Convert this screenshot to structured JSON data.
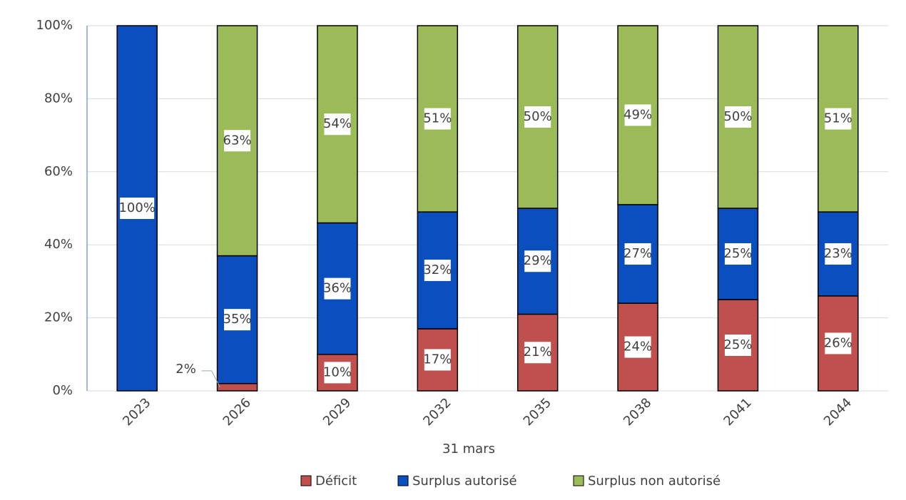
{
  "chart_data": {
    "type": "stacked_bar",
    "x_label": "31 mars",
    "categories": [
      "2023",
      "2026",
      "2029",
      "2032",
      "2035",
      "2038",
      "2041",
      "2044"
    ],
    "series": [
      {
        "name": "Déficit",
        "color": "#c0504d",
        "values": [
          0,
          2,
          10,
          17,
          21,
          24,
          25,
          26
        ],
        "value_labels": [
          null,
          "2%",
          "10%",
          "17%",
          "21%",
          "24%",
          "25%",
          "26%"
        ]
      },
      {
        "name": "Surplus autorisé",
        "color": "#0a4fbd",
        "values": [
          100,
          35,
          36,
          32,
          29,
          27,
          25,
          23
        ],
        "value_labels": [
          "100%",
          "35%",
          "36%",
          "32%",
          "29%",
          "27%",
          "25%",
          "23%"
        ]
      },
      {
        "name": "Surplus non autorisé",
        "color": "#9bbb59",
        "values": [
          0,
          63,
          54,
          51,
          50,
          49,
          50,
          51
        ],
        "value_labels": [
          null,
          "63%",
          "54%",
          "51%",
          "50%",
          "49%",
          "50%",
          "51%"
        ]
      }
    ],
    "ylim": [
      0,
      100
    ],
    "yticks": [
      {
        "value": 0,
        "label": "0%"
      },
      {
        "value": 20,
        "label": "20%"
      },
      {
        "value": 40,
        "label": "40%"
      },
      {
        "value": 60,
        "label": "60%"
      },
      {
        "value": 80,
        "label": "80%"
      },
      {
        "value": 100,
        "label": "100%"
      }
    ],
    "grid": true,
    "legend": "bottom"
  }
}
